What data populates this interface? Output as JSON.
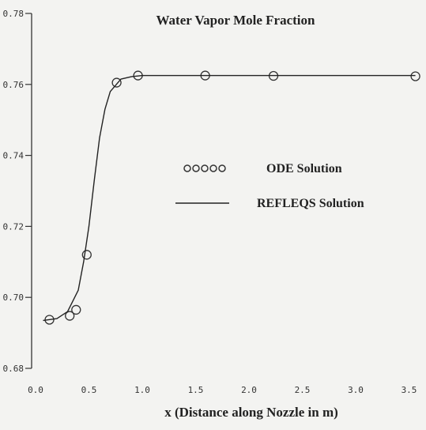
{
  "chart_data": {
    "type": "line",
    "title": "Water Vapor Mole Fraction",
    "x_label": "x (Distance along Nozzle in m)",
    "xlim": [
      0,
      3.6
    ],
    "ylim": [
      0.68,
      0.78
    ],
    "xticks": [
      {
        "value": 0,
        "label": "0.0"
      },
      0.5,
      {
        "value": 1,
        "label": "1.0"
      },
      1.5,
      {
        "value": 2,
        "label": "2.0"
      },
      2.5,
      {
        "value": 3,
        "label": "3.0"
      },
      3.5
    ],
    "yticks": [
      0.68,
      {
        "value": 0.7,
        "label": "0.70"
      },
      0.72,
      0.74,
      0.76,
      0.78
    ],
    "series": [
      {
        "name": "ODE Solution",
        "mode": "markers",
        "color": "#333333",
        "x": [
          0.13,
          0.32,
          0.38,
          0.48,
          0.76,
          0.96,
          1.59,
          2.23,
          3.56
        ],
        "values": [
          0.6937,
          0.6948,
          0.6965,
          0.712,
          0.7605,
          0.7625,
          0.7625,
          0.7624,
          0.7623
        ]
      },
      {
        "name": "REFLEQS Solution",
        "mode": "line",
        "color": "#222222",
        "x": [
          0.07,
          0.2,
          0.3,
          0.4,
          0.45,
          0.5,
          0.55,
          0.6,
          0.65,
          0.7,
          0.8,
          0.9,
          1.0,
          3.56
        ],
        "values": [
          0.6935,
          0.694,
          0.696,
          0.702,
          0.71,
          0.72,
          0.733,
          0.745,
          0.753,
          0.758,
          0.7615,
          0.7622,
          0.7625,
          0.7625
        ]
      }
    ]
  }
}
